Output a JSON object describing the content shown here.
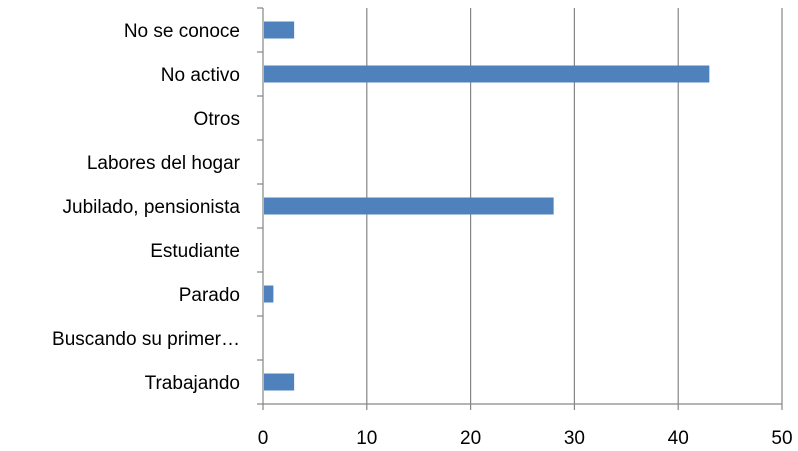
{
  "chart_data": {
    "type": "bar",
    "orientation": "horizontal",
    "categories": [
      "No se conoce",
      "No activo",
      "Otros",
      "Labores del hogar",
      "Jubilado, pensionista",
      "Estudiante",
      "Parado",
      "Buscando su primer…",
      "Trabajando"
    ],
    "values": [
      3,
      43,
      0,
      0,
      28,
      0,
      1,
      0,
      3
    ],
    "xlim": [
      0,
      50
    ],
    "xticks": [
      0,
      10,
      20,
      30,
      40,
      50
    ],
    "grid": "vertical",
    "bar_color": "#4F81BD",
    "title": "",
    "xlabel": "",
    "ylabel": ""
  }
}
